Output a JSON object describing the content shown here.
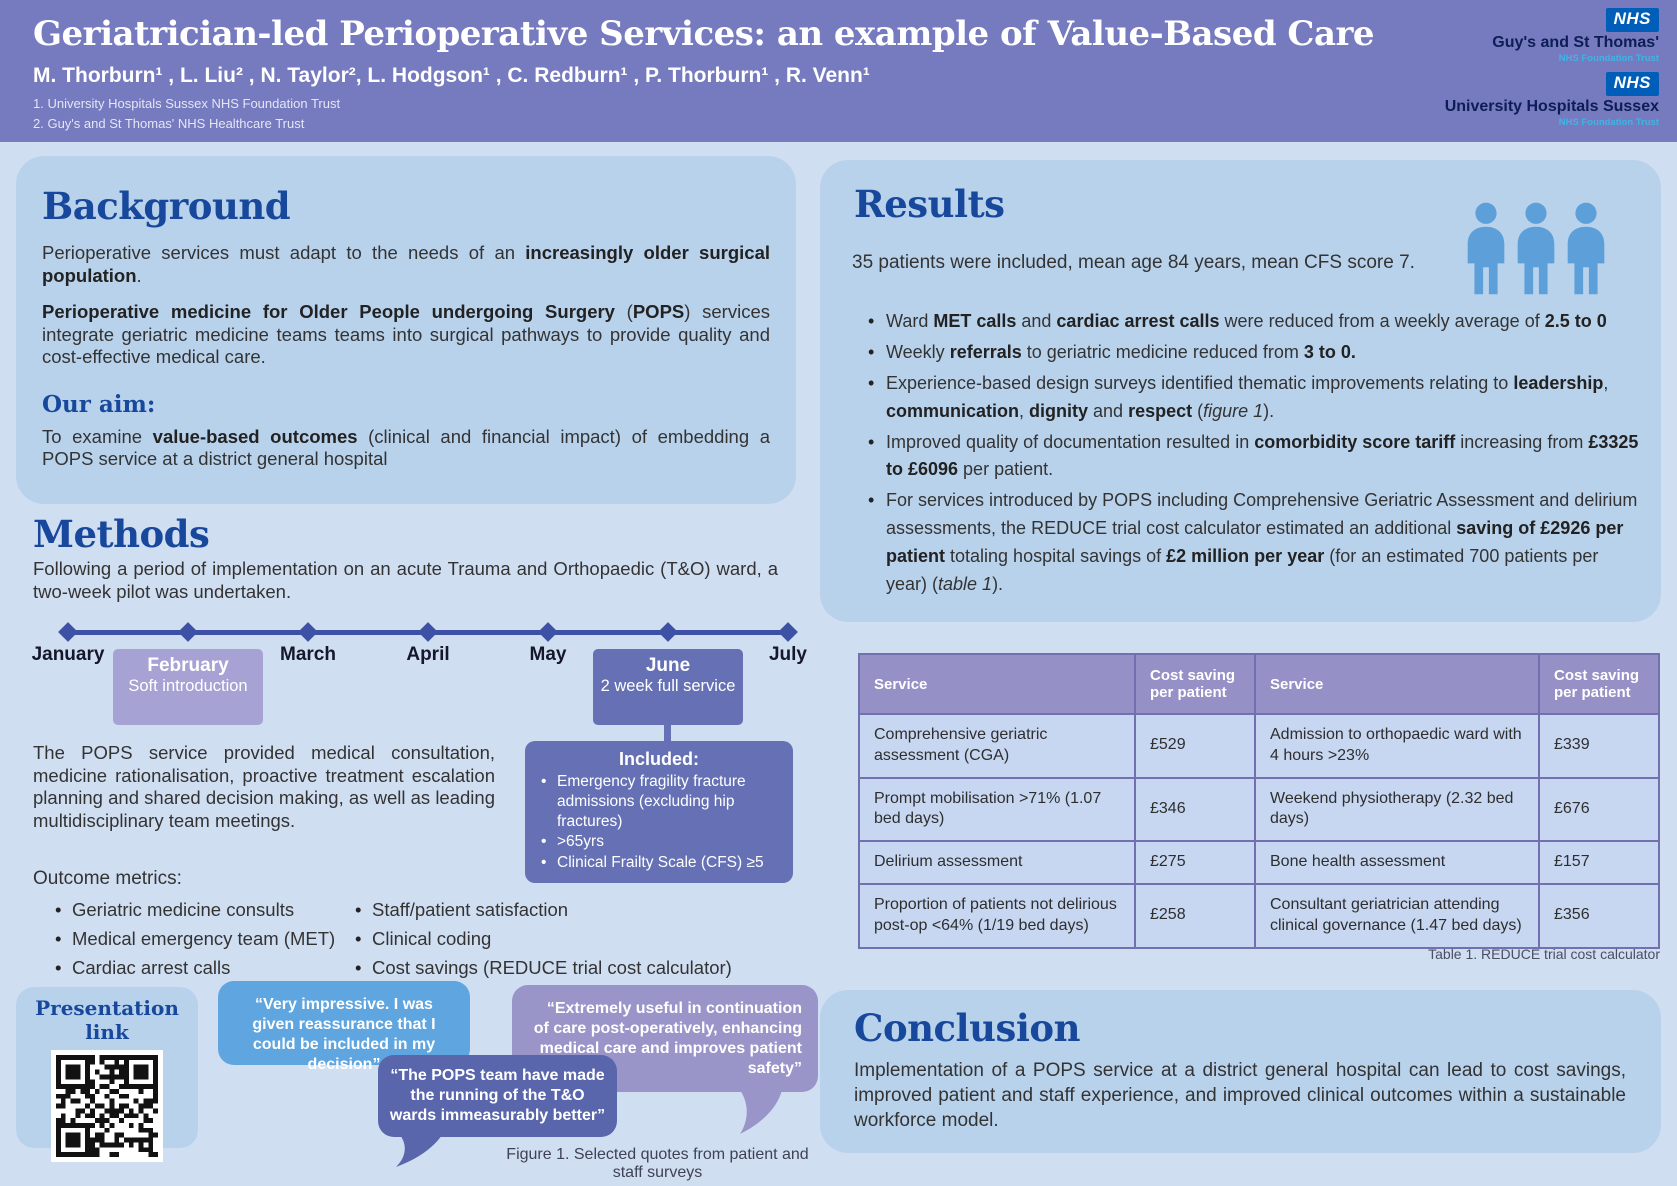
{
  "header": {
    "title": "Geriatrician-led Perioperative Services: an example of Value-Based Care",
    "authors": "M. Thorburn¹ , L. Liu² , N. Taylor², L. Hodgson¹ , C. Redburn¹ , P. Thorburn¹ , R. Venn¹",
    "affiliation1": "1. University Hospitals Sussex NHS Foundation Trust",
    "affiliation2": "2. Guy's and St Thomas' NHS Healthcare Trust",
    "logos": [
      {
        "nhs": "NHS",
        "org": "Guy's and St Thomas'",
        "sub": "NHS Foundation Trust"
      },
      {
        "nhs": "NHS",
        "org": "University Hospitals Sussex",
        "sub": "NHS Foundation Trust"
      }
    ]
  },
  "background": {
    "heading": "Background",
    "p1": [
      {
        "t": "Perioperative services must adapt to the needs of an "
      },
      {
        "t": "increasingly older surgical population",
        "b": 1
      },
      {
        "t": "."
      }
    ],
    "p2": [
      {
        "t": "Perioperative medicine for Older People undergoing Surgery",
        "b": 1
      },
      {
        "t": " ("
      },
      {
        "t": "POPS",
        "b": 1
      },
      {
        "t": ") services integrate geriatric medicine teams teams into surgical pathways to provide quality and cost-effective medical care."
      }
    ],
    "aim_heading": "Our aim:",
    "aim": [
      {
        "t": "To examine "
      },
      {
        "t": "value-based outcomes",
        "b": 1
      },
      {
        "t": " (clinical and financial impact) of embedding a POPS service at a district general hospital"
      }
    ]
  },
  "methods": {
    "heading": "Methods",
    "intro": "Following a period of implementation on an acute Trauma and Orthopaedic (T&O) ward, a two-week pilot was undertaken.",
    "timeline": {
      "months": [
        "January",
        "February",
        "March",
        "April",
        "May",
        "June",
        "July"
      ],
      "february_subtitle": "Soft introduction",
      "june_subtitle": "2 week full service"
    },
    "included": {
      "title": "Included:",
      "items": [
        "Emergency fragility fracture admissions (excluding hip fractures)",
        ">65yrs",
        "Clinical Frailty Scale (CFS) ≥5"
      ]
    },
    "pops_paragraph": "The POPS service provided medical consultation, medicine rationalisation, proactive treatment escalation planning and shared decision making, as well as leading multidisciplinary team meetings.",
    "outcome_heading": "Outcome metrics:",
    "outcomes_col1": [
      "Geriatric medicine consults",
      "Medical emergency team (MET)",
      "Cardiac arrest calls"
    ],
    "outcomes_col2": [
      "Staff/patient satisfaction",
      "Clinical coding",
      "Cost savings (REDUCE trial cost calculator)"
    ]
  },
  "results": {
    "heading": "Results",
    "intro": "35 patients were included, mean age 84 years, mean CFS score 7.",
    "bullets": [
      [
        {
          "t": "Ward "
        },
        {
          "t": "MET calls",
          "b": 1
        },
        {
          "t": " and "
        },
        {
          "t": "cardiac arrest calls",
          "b": 1
        },
        {
          "t": " were reduced from a weekly average of "
        },
        {
          "t": "2.5 to 0",
          "b": 1
        }
      ],
      [
        {
          "t": "Weekly "
        },
        {
          "t": "referrals",
          "b": 1
        },
        {
          "t": " to geriatric medicine reduced from "
        },
        {
          "t": "3 to 0.",
          "b": 1
        }
      ],
      [
        {
          "t": "Experience-based design surveys identified thematic improvements relating to "
        },
        {
          "t": "leadership",
          "b": 1
        },
        {
          "t": ", "
        },
        {
          "t": "communication",
          "b": 1
        },
        {
          "t": ", "
        },
        {
          "t": "dignity",
          "b": 1
        },
        {
          "t": " and "
        },
        {
          "t": "respect",
          "b": 1
        },
        {
          "t": " ("
        },
        {
          "t": "figure 1",
          "i": 1
        },
        {
          "t": ")."
        }
      ],
      [
        {
          "t": "Improved quality of documentation resulted in "
        },
        {
          "t": "comorbidity score tariff",
          "b": 1
        },
        {
          "t": " increasing from "
        },
        {
          "t": "£3325 to £6096",
          "b": 1
        },
        {
          "t": " per patient."
        }
      ],
      [
        {
          "t": "For services introduced by POPS including Comprehensive Geriatric Assessment and delirium assessments, the REDUCE trial cost calculator estimated an additional "
        },
        {
          "t": "saving of £2926 per patient",
          "b": 1
        },
        {
          "t": " totaling hospital savings of "
        },
        {
          "t": "£2 million per year",
          "b": 1
        },
        {
          "t": " (for an estimated 700 patients per year) ("
        },
        {
          "t": "table 1",
          "i": 1
        },
        {
          "t": ")."
        }
      ]
    ]
  },
  "table": {
    "headers": [
      "Service",
      "Cost saving per patient",
      "Service",
      "Cost saving per patient"
    ],
    "rows": [
      [
        "Comprehensive geriatric assessment (CGA)",
        "£529",
        "Admission to orthopaedic ward with 4 hours >23%",
        "£339"
      ],
      [
        "Prompt mobilisation >71% (1.07 bed days)",
        "£346",
        "Weekend physiotherapy (2.32 bed days)",
        "£676"
      ],
      [
        "Delirium assessment",
        "£275",
        "Bone health assessment",
        "£157"
      ],
      [
        "Proportion of patients not delirious post-op <64% (1/19 bed days)",
        "£258",
        "Consultant geriatrician attending clinical governance (1.47 bed days)",
        "£356"
      ]
    ],
    "caption": "Table 1. REDUCE trial cost calculator"
  },
  "conclusion": {
    "heading": "Conclusion",
    "text": "Implementation of a POPS service at a district general hospital can lead to cost savings, improved patient and staff experience, and improved clinical outcomes within a sustainable workforce model."
  },
  "footer": {
    "presentation_label": "Presentation link",
    "quotes": [
      "“Very impressive. I was given reassurance that I could be included in my decision”",
      "“Extremely useful in continuation of care post-operatively, enhancing medical care and improves patient safety”",
      "“The POPS team have made the running of the T&O wards immeasurably better”"
    ],
    "figure_caption": "Figure 1. Selected quotes from patient and staff surveys"
  },
  "colors": {
    "header_bg": "#767abf",
    "page_bg": "#d0def2",
    "card_bg": "#b9d2ec",
    "heading_blue": "#17489c",
    "nhs_blue": "#005eb8",
    "nhs_light_blue": "#41b6e6",
    "timeline_blue": "#3d52a4",
    "purple_box": "#6571b4",
    "light_purple_box": "#a6a3d4",
    "table_header": "#9591c6",
    "table_row": "#c7d7f1",
    "bubble_blue": "#5fa5df",
    "bubble_light_purple": "#9995c9",
    "bubble_dark_blue": "#5a66ab",
    "people_icon": "#5d9fd9"
  }
}
